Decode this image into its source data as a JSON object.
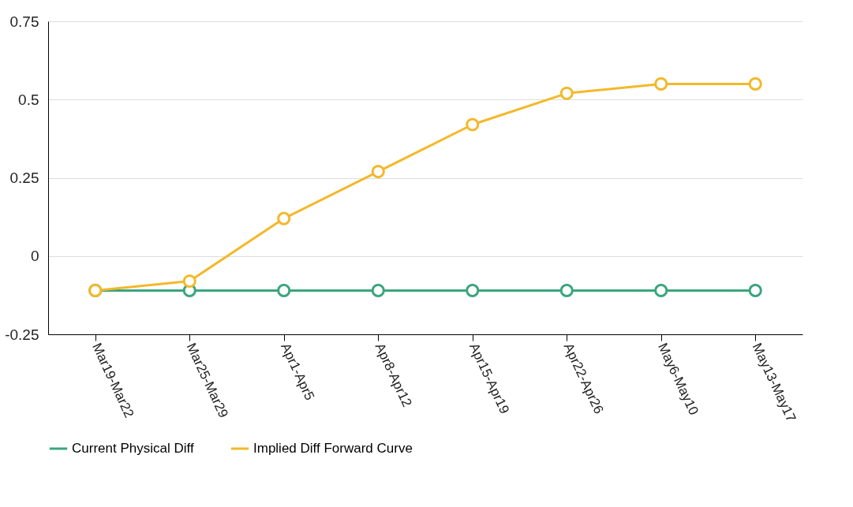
{
  "chart_data": {
    "type": "line",
    "categories": [
      "Mar19-Mar22",
      "Mar25-Mar29",
      "Apr1-Apr5",
      "Apr8-Apr12",
      "Apr15-Apr19",
      "Apr22-Apr26",
      "May6-May10",
      "May13-May17"
    ],
    "series": [
      {
        "name": "Current Physical Diff",
        "color": "#3ba57f",
        "values": [
          -0.11,
          -0.11,
          -0.11,
          -0.11,
          -0.11,
          -0.11,
          -0.11,
          -0.11
        ]
      },
      {
        "name": "Implied Diff Forward Curve",
        "color": "#f4b82a",
        "values": [
          -0.11,
          -0.08,
          0.12,
          0.27,
          0.42,
          0.52,
          0.55,
          0.55
        ]
      }
    ],
    "ylim": [
      -0.25,
      0.75
    ],
    "yticks": [
      -0.25,
      0,
      0.25,
      0.5,
      0.75
    ],
    "grid": "y",
    "legend": "bottom",
    "marker": "circle",
    "line_style": "solid"
  }
}
